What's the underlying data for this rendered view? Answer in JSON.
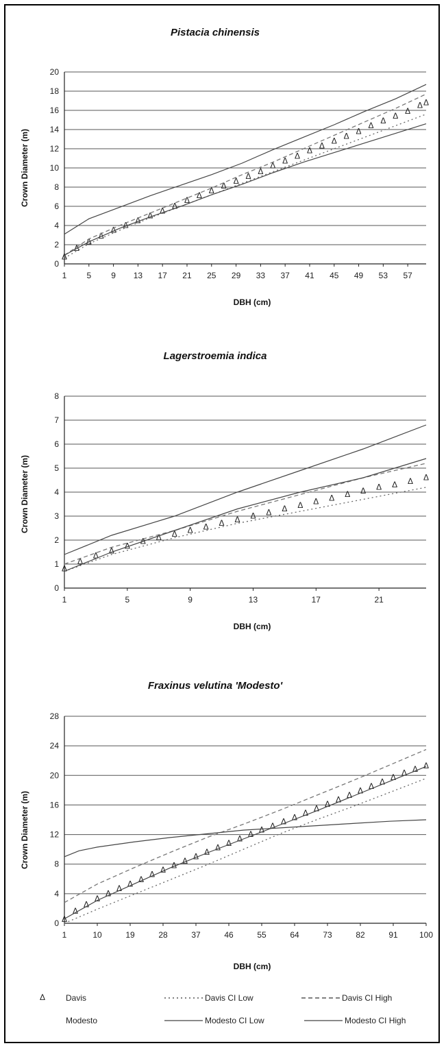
{
  "legend": [
    {
      "label": "Davis",
      "style": "marker"
    },
    {
      "label": "Davis CI Low",
      "style": "dotted"
    },
    {
      "label": "Davis CI High",
      "style": "dashed"
    },
    {
      "label": "Modesto",
      "style": "none"
    },
    {
      "label": "Modesto CI Low",
      "style": "solid"
    },
    {
      "label": "Modesto CI High",
      "style": "solid"
    }
  ],
  "chart_data": [
    {
      "type": "line",
      "title": "Pistacia chinensis",
      "xlabel": "DBH (cm)",
      "ylabel": "Crown Diameter (m)",
      "xlim": [
        1,
        60
      ],
      "ylim": [
        0,
        20
      ],
      "yticks": [
        0,
        2,
        4,
        6,
        8,
        10,
        12,
        14,
        16,
        18,
        20
      ],
      "xticks": [
        1,
        5,
        9,
        13,
        17,
        21,
        25,
        29,
        33,
        37,
        41,
        45,
        49,
        53,
        57
      ],
      "grid": true,
      "series": [
        {
          "name": "Davis",
          "x": [
            1,
            3,
            5,
            7,
            9,
            11,
            13,
            15,
            17,
            19,
            21,
            23,
            25,
            27,
            29,
            31,
            33,
            35,
            37,
            39,
            41,
            43,
            45,
            47,
            49,
            51,
            53,
            55,
            57,
            59,
            60
          ],
          "values": [
            0.7,
            1.6,
            2.3,
            2.9,
            3.5,
            4.0,
            4.5,
            5.0,
            5.5,
            6.0,
            6.6,
            7.1,
            7.6,
            8.1,
            8.6,
            9.1,
            9.6,
            10.2,
            10.7,
            11.2,
            11.8,
            12.3,
            12.8,
            13.3,
            13.8,
            14.4,
            14.9,
            15.4,
            15.9,
            16.5,
            16.8
          ]
        },
        {
          "name": "Davis CI Low",
          "x": [
            1,
            5,
            10,
            15,
            20,
            25,
            30,
            35,
            40,
            45,
            50,
            55,
            60
          ],
          "values": [
            0.6,
            2.1,
            3.5,
            4.8,
            6.0,
            7.2,
            8.4,
            9.6,
            10.8,
            12.0,
            13.2,
            14.4,
            15.6
          ]
        },
        {
          "name": "Davis CI High",
          "x": [
            1,
            5,
            10,
            15,
            20,
            25,
            30,
            35,
            40,
            45,
            50,
            55,
            60
          ],
          "values": [
            0.9,
            2.6,
            4.0,
            5.3,
            6.6,
            7.9,
            9.3,
            10.6,
            12.0,
            13.4,
            14.8,
            16.2,
            17.7
          ]
        },
        {
          "name": "Modesto CI Low",
          "x": [
            1,
            5,
            10,
            15,
            20,
            25,
            30,
            35,
            40,
            45,
            50,
            55,
            60
          ],
          "values": [
            0.9,
            2.3,
            3.7,
            4.9,
            6.0,
            7.2,
            8.3,
            9.5,
            10.6,
            11.6,
            12.6,
            13.6,
            14.6
          ]
        },
        {
          "name": "Modesto CI High",
          "x": [
            1,
            5,
            10,
            15,
            20,
            25,
            30,
            35,
            40,
            45,
            50,
            55,
            60
          ],
          "values": [
            3.1,
            4.7,
            5.9,
            7.1,
            8.2,
            9.3,
            10.5,
            11.9,
            13.2,
            14.5,
            15.9,
            17.2,
            18.7
          ]
        }
      ]
    },
    {
      "type": "line",
      "title": "Lagerstroemia indica",
      "xlabel": "DBH (cm)",
      "ylabel": "Crown Diameter (m)",
      "xlim": [
        1,
        24
      ],
      "ylim": [
        0,
        8
      ],
      "yticks": [
        0,
        1,
        2,
        3,
        4,
        5,
        6,
        7,
        8
      ],
      "xticks": [
        1,
        5,
        9,
        13,
        17,
        21
      ],
      "grid": true,
      "series": [
        {
          "name": "Davis",
          "x": [
            1,
            2,
            3,
            4,
            5,
            6,
            7,
            8,
            9,
            10,
            11,
            12,
            13,
            14,
            15,
            16,
            17,
            18,
            19,
            20,
            21,
            22,
            23,
            24
          ],
          "values": [
            0.8,
            1.1,
            1.35,
            1.55,
            1.75,
            1.95,
            2.1,
            2.25,
            2.4,
            2.55,
            2.7,
            2.85,
            3.0,
            3.15,
            3.3,
            3.45,
            3.6,
            3.75,
            3.9,
            4.05,
            4.2,
            4.3,
            4.45,
            4.6
          ]
        },
        {
          "name": "Davis CI Low",
          "x": [
            1,
            4,
            8,
            12,
            16,
            20,
            24
          ],
          "values": [
            0.7,
            1.4,
            2.1,
            2.7,
            3.2,
            3.7,
            4.2
          ]
        },
        {
          "name": "Davis CI High",
          "x": [
            1,
            4,
            8,
            12,
            16,
            20,
            24
          ],
          "values": [
            1.0,
            1.7,
            2.4,
            3.2,
            3.9,
            4.6,
            5.2
          ]
        },
        {
          "name": "Modesto CI Low",
          "x": [
            1,
            4,
            8,
            12,
            16,
            20,
            24
          ],
          "values": [
            0.7,
            1.5,
            2.4,
            3.3,
            4.0,
            4.6,
            5.4
          ]
        },
        {
          "name": "Modesto CI High",
          "x": [
            1,
            4,
            8,
            12,
            16,
            20,
            24
          ],
          "values": [
            1.4,
            2.2,
            3.0,
            4.0,
            4.9,
            5.8,
            6.8
          ]
        }
      ]
    },
    {
      "type": "line",
      "title": "Fraxinus velutina 'Modesto'",
      "xlabel": "DBH (cm)",
      "ylabel": "Crown Diameter (m)",
      "xlim": [
        1,
        100
      ],
      "ylim": [
        0,
        28
      ],
      "yticks": [
        0,
        4,
        8,
        12,
        16,
        20,
        24,
        28
      ],
      "xticks": [
        1,
        10,
        19,
        28,
        37,
        46,
        55,
        64,
        73,
        82,
        91,
        100
      ],
      "grid": true,
      "series": [
        {
          "name": "Davis",
          "x": [
            1,
            4,
            7,
            10,
            13,
            16,
            19,
            22,
            25,
            28,
            31,
            34,
            37,
            40,
            43,
            46,
            49,
            52,
            55,
            58,
            61,
            64,
            67,
            70,
            73,
            76,
            79,
            82,
            85,
            88,
            91,
            94,
            97,
            100
          ],
          "values": [
            0.5,
            1.6,
            2.5,
            3.3,
            4.0,
            4.7,
            5.3,
            5.9,
            6.6,
            7.2,
            7.8,
            8.4,
            9.0,
            9.6,
            10.2,
            10.8,
            11.4,
            12.0,
            12.6,
            13.1,
            13.7,
            14.3,
            14.9,
            15.5,
            16.1,
            16.7,
            17.3,
            17.9,
            18.5,
            19.1,
            19.7,
            20.3,
            20.8,
            21.3
          ]
        },
        {
          "name": "Davis CI Low",
          "x": [
            1,
            10,
            20,
            30,
            40,
            50,
            60,
            70,
            80,
            90,
            100
          ],
          "values": [
            0.0,
            1.9,
            3.9,
            5.9,
            7.9,
            10.0,
            12.1,
            14.0,
            15.8,
            17.7,
            19.6
          ]
        },
        {
          "name": "Davis CI High",
          "x": [
            1,
            10,
            20,
            30,
            40,
            50,
            60,
            70,
            80,
            90,
            100
          ],
          "values": [
            2.8,
            5.3,
            7.5,
            9.6,
            11.6,
            13.4,
            15.3,
            17.3,
            19.3,
            21.4,
            23.5
          ]
        },
        {
          "name": "Modesto CI Low",
          "x": [
            1,
            10,
            20,
            30,
            40,
            50,
            60,
            70,
            80,
            90,
            100
          ],
          "values": [
            0.6,
            3.1,
            5.3,
            7.5,
            9.5,
            11.4,
            13.3,
            15.2,
            17.2,
            19.2,
            21.2
          ]
        },
        {
          "name": "Modesto CI High",
          "x": [
            1,
            5,
            10,
            20,
            30,
            40,
            50,
            60,
            70,
            80,
            90,
            100
          ],
          "values": [
            9.0,
            9.8,
            10.3,
            11.0,
            11.6,
            12.1,
            12.6,
            12.9,
            13.2,
            13.5,
            13.8,
            14.0
          ]
        }
      ]
    }
  ]
}
